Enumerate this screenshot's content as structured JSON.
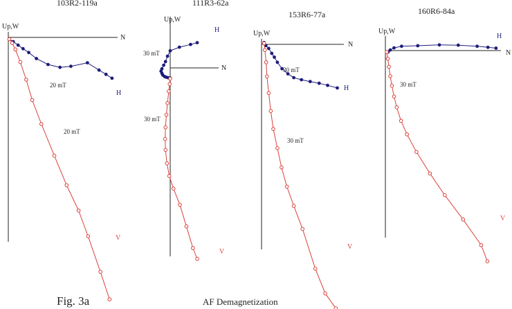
{
  "caption": {
    "figure": "Fig. 3a",
    "subtitle": "AF Demagnetization"
  },
  "colors": {
    "horizontal": "#1c1c7a",
    "vertical": "#d9403a",
    "axes": "#222222"
  },
  "chart_data": [
    {
      "type": "scatter",
      "title": "103R2-119a",
      "xlabel": "N",
      "ylabel": "Up,W",
      "annotations": [
        "20 mT",
        "20 mT"
      ],
      "series": [
        {
          "name": "H",
          "x": [
            0.3,
            1.4,
            2.8,
            4.2,
            5.8,
            8.0,
            11.3,
            14.7,
            17.8,
            22.5,
            25.8,
            27.8,
            29.5
          ],
          "y": [
            -0.5,
            -1.2,
            -2.2,
            -3.2,
            -4.3,
            -6.0,
            -7.7,
            -8.5,
            -8.2,
            -7.2,
            -9.3,
            -10.5,
            -11.6
          ]
        },
        {
          "name": "V",
          "x": [
            0.3,
            1.1,
            2.0,
            3.4,
            5.1,
            6.8,
            9.4,
            13.1,
            16.6,
            20.0,
            22.7,
            26.2,
            28.8
          ],
          "y": [
            -0.5,
            -1.6,
            -3.4,
            -7.0,
            -12.0,
            -17.8,
            -24.6,
            -33.6,
            -42.0,
            -49.2,
            -56.5,
            -66.6,
            -74.4
          ]
        }
      ]
    },
    {
      "type": "scatter",
      "title": "111R3-62a",
      "xlabel": "N",
      "ylabel": "Up,W",
      "annotations": [
        "30 mT",
        "30 mT"
      ],
      "series": [
        {
          "name": "H",
          "x": [
            15.0,
            11.3,
            5.1,
            0.0,
            -1.5,
            -2.6,
            -3.6,
            -4.6,
            -5.1,
            -4.6,
            -4.1,
            -3.1,
            -2.1,
            -1.0,
            0.0
          ],
          "y": [
            14.0,
            13.0,
            11.5,
            9.5,
            6.5,
            3.5,
            1.5,
            -0.5,
            -1.8,
            -3.0,
            -4.0,
            -4.8,
            -5.2,
            -5.5,
            -5.6
          ]
        },
        {
          "name": "V",
          "x": [
            0.0,
            -0.3,
            -0.8,
            -1.5,
            -2.1,
            -2.6,
            -2.8,
            -2.6,
            -1.8,
            -0.5,
            1.8,
            5.4,
            9.0,
            12.6,
            15.0
          ],
          "y": [
            -6.0,
            -9.0,
            -13.0,
            -19.5,
            -26.0,
            -33.0,
            -39.5,
            -45.5,
            -53.0,
            -60.0,
            -67.0,
            -76.0,
            -88.0,
            -100.0,
            -106.0
          ]
        }
      ]
    },
    {
      "type": "scatter",
      "title": "153R6-77a",
      "xlabel": "N",
      "ylabel": "Up,W",
      "annotations": [
        "30 mT",
        "30 mT"
      ],
      "series": [
        {
          "name": "H",
          "x": [
            1.0,
            1.7,
            2.8,
            4.0,
            5.0,
            6.2,
            8.0,
            10.3,
            12.6,
            15.6,
            19.0,
            22.5,
            25.8,
            29.6
          ],
          "y": [
            0.7,
            -0.5,
            -1.6,
            -3.5,
            -5.0,
            -7.0,
            -9.5,
            -11.5,
            -13.0,
            -13.8,
            -14.5,
            -15.2,
            -16.0,
            -17.0
          ]
        },
        {
          "name": "V",
          "x": [
            1.0,
            1.3,
            1.8,
            2.1,
            2.8,
            3.6,
            4.6,
            6.2,
            7.8,
            9.9,
            12.6,
            16.0,
            21.0,
            24.9,
            29.0
          ],
          "y": [
            0.4,
            -2.2,
            -7.0,
            -12.5,
            -19.0,
            -26.0,
            -33.0,
            -40.5,
            -48.0,
            -55.5,
            -63.0,
            -72.0,
            -87.5,
            -97.2,
            -103.0
          ]
        }
      ]
    },
    {
      "type": "scatter",
      "title": "160R6-84a",
      "xlabel": "N",
      "ylabel": "Up,W",
      "annotations": [
        "30 mT"
      ],
      "series": [
        {
          "name": "H",
          "x": [
            1.0,
            1.8,
            3.2,
            6.0,
            12.0,
            20.0,
            27.0,
            34.0,
            38.0,
            41.0
          ],
          "y": [
            -0.5,
            0.2,
            1.0,
            1.6,
            1.8,
            2.1,
            2.0,
            1.6,
            1.2,
            0.9
          ]
        },
        {
          "name": "V",
          "x": [
            0.5,
            0.9,
            1.3,
            1.8,
            2.4,
            3.2,
            4.2,
            5.8,
            8.0,
            11.5,
            16.5,
            22.0,
            28.8,
            35.5,
            37.8
          ],
          "y": [
            -0.5,
            -3.0,
            -6.0,
            -9.5,
            -13.0,
            -17.0,
            -21.0,
            -26.0,
            -31.0,
            -37.5,
            -45.5,
            -53.5,
            -62.5,
            -72.0,
            -78.0
          ]
        }
      ]
    }
  ]
}
